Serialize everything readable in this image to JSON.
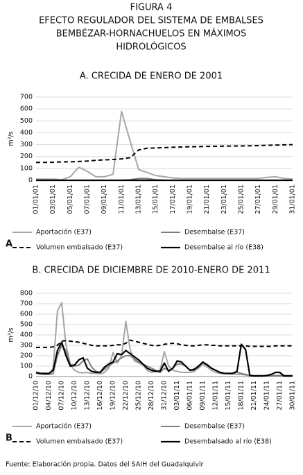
{
  "figure": {
    "label": "FIGURA 4",
    "title_lines": [
      "EFECTO REGULADOR DEL SISTEMA DE EMBALSES",
      "BEMBÉZAR-HORNACHUELOS EN MÁXIMOS",
      "HIDROLÓGICOS"
    ]
  },
  "source": "Fuente: Elaboración propia. Datos del SAIH del Guadalquivir",
  "chart_data": [
    {
      "type": "line",
      "panel": "A",
      "title": "A. CRECIDA DE ENERO DE 2001",
      "y_label": "m³/s",
      "grid": true,
      "ylim": [
        0,
        700
      ],
      "yticks": [
        0,
        100,
        200,
        300,
        400,
        500,
        600,
        700
      ],
      "categories": [
        "01/01/01",
        null,
        "03/01/01",
        null,
        "05/01/01",
        null,
        "07/01/01",
        null,
        "09/01/01",
        null,
        "11/01/01",
        null,
        "13/01/01",
        null,
        "15/01/01",
        null,
        "17/01/01",
        null,
        "19/01/01",
        null,
        "21/01/01",
        null,
        "23/01/01",
        null,
        "25/01/01",
        null,
        "27/01/01",
        null,
        "29/01/01",
        null,
        "31/01/01"
      ],
      "series": [
        {
          "name": "Aportación (E37)",
          "color": "#a6a6a6",
          "style": "solid",
          "values": [
            10,
            10,
            10,
            5,
            30,
            110,
            75,
            30,
            30,
            50,
            580,
            330,
            90,
            65,
            40,
            30,
            20,
            15,
            15,
            15,
            15,
            15,
            15,
            15,
            15,
            15,
            15,
            25,
            30,
            15,
            10
          ]
        },
        {
          "name": "Desembalse (E37)",
          "color": "#7f7f7f",
          "style": "solid",
          "values": [
            0,
            0,
            0,
            0,
            0,
            0,
            0,
            0,
            0,
            0,
            0,
            5,
            15,
            15,
            5,
            0,
            0,
            0,
            0,
            0,
            0,
            0,
            0,
            0,
            0,
            0,
            0,
            0,
            0,
            0,
            0
          ]
        },
        {
          "name": "Volumen embalsado (E37)",
          "color": "#000000",
          "style": "dashed",
          "values": [
            150,
            150,
            152,
            155,
            155,
            158,
            162,
            168,
            172,
            175,
            180,
            190,
            255,
            270,
            272,
            275,
            278,
            280,
            282,
            283,
            285,
            286,
            287,
            288,
            289,
            290,
            292,
            294,
            296,
            298,
            300
          ]
        },
        {
          "name": "Desembalse al río (E38)",
          "color": "#000000",
          "style": "solid",
          "values": [
            0,
            0,
            0,
            0,
            0,
            0,
            0,
            0,
            0,
            0,
            0,
            0,
            0,
            0,
            0,
            0,
            0,
            0,
            0,
            0,
            0,
            0,
            0,
            0,
            0,
            0,
            0,
            0,
            0,
            0,
            0
          ]
        }
      ]
    },
    {
      "type": "line",
      "panel": "B",
      "title": "B. CRECIDA DE DICIEMBRE DE 2010-ENERO DE 2011",
      "y_label": "m³/s",
      "grid": true,
      "ylim": [
        0,
        800
      ],
      "yticks": [
        0,
        100,
        200,
        300,
        400,
        500,
        600,
        700,
        800
      ],
      "categories": [
        "01/12/10",
        null,
        null,
        "04/12/10",
        null,
        null,
        "07/12/10",
        null,
        null,
        "10/12/10",
        null,
        null,
        "13/12/10",
        null,
        null,
        "16/12/10",
        null,
        null,
        "19/12/10",
        null,
        null,
        "22/12/10",
        null,
        null,
        "25/12/10",
        null,
        null,
        "28/12/10",
        null,
        null,
        "31/12/10",
        null,
        null,
        "03/01/11",
        null,
        null,
        "06/01/11",
        null,
        null,
        "09/01/11",
        null,
        null,
        "12/01/11",
        null,
        null,
        "15/01/11",
        null,
        null,
        "18/01/11",
        null,
        null,
        "21/01/11",
        null,
        null,
        "24/01/11",
        null,
        null,
        "27/01/11",
        null,
        null,
        "30/01/11"
      ],
      "series": [
        {
          "name": "Aportación (E37)",
          "color": "#a6a6a6",
          "style": "solid",
          "values": [
            30,
            25,
            20,
            20,
            80,
            630,
            710,
            300,
            120,
            60,
            40,
            35,
            40,
            30,
            30,
            25,
            40,
            80,
            230,
            130,
            200,
            530,
            260,
            150,
            130,
            110,
            60,
            40,
            50,
            60,
            240,
            100,
            60,
            50,
            40,
            40,
            40,
            50,
            80,
            120,
            90,
            60,
            40,
            30,
            30,
            25,
            25,
            20,
            20,
            15,
            10,
            10,
            10,
            10,
            10,
            10,
            10,
            10,
            10,
            10,
            10
          ]
        },
        {
          "name": "Desembalse (E37)",
          "color": "#7f7f7f",
          "style": "solid",
          "values": [
            30,
            25,
            20,
            20,
            30,
            200,
            300,
            250,
            120,
            100,
            110,
            150,
            170,
            90,
            50,
            40,
            70,
            100,
            130,
            150,
            180,
            200,
            200,
            170,
            140,
            120,
            100,
            80,
            60,
            40,
            80,
            60,
            80,
            120,
            120,
            100,
            60,
            60,
            90,
            130,
            120,
            80,
            60,
            40,
            30,
            30,
            30,
            40,
            30,
            20,
            10,
            10,
            10,
            10,
            10,
            10,
            10,
            10,
            10,
            10,
            10
          ]
        },
        {
          "name": "Volumen embalsado (E37)",
          "color": "#000000",
          "style": "dashed",
          "values": [
            280,
            280,
            280,
            280,
            285,
            300,
            340,
            345,
            340,
            335,
            330,
            320,
            310,
            300,
            295,
            295,
            295,
            295,
            300,
            305,
            305,
            320,
            350,
            340,
            330,
            320,
            310,
            300,
            295,
            300,
            310,
            315,
            320,
            315,
            305,
            300,
            295,
            295,
            300,
            305,
            305,
            300,
            300,
            295,
            295,
            295,
            295,
            295,
            295,
            295,
            290,
            290,
            290,
            290,
            290,
            290,
            295,
            295,
            295,
            295,
            295
          ]
        },
        {
          "name": "Desembalsado al río (E38)",
          "color": "#000000",
          "style": "solid",
          "values": [
            40,
            30,
            30,
            30,
            60,
            250,
            330,
            200,
            100,
            110,
            160,
            180,
            80,
            50,
            40,
            40,
            90,
            120,
            140,
            220,
            210,
            250,
            220,
            190,
            160,
            120,
            80,
            60,
            50,
            50,
            130,
            50,
            80,
            150,
            140,
            100,
            60,
            70,
            100,
            140,
            110,
            80,
            60,
            40,
            30,
            30,
            30,
            50,
            310,
            260,
            10,
            5,
            5,
            5,
            10,
            20,
            40,
            40,
            5,
            5,
            5
          ]
        }
      ]
    }
  ]
}
